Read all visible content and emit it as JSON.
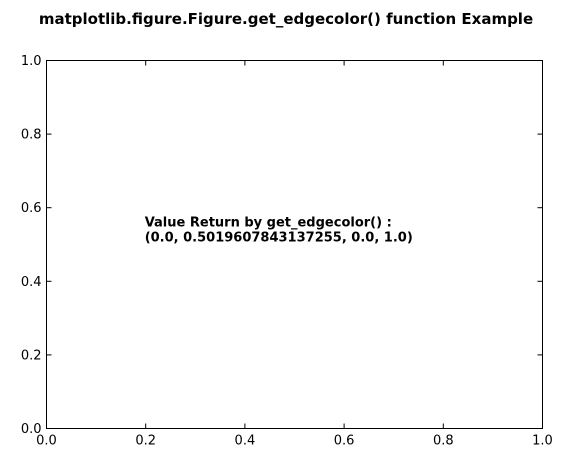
{
  "chart_data": {
    "type": "scatter",
    "title": "matplotlib.figure.Figure.get_edgecolor() function Example",
    "xlabel": "",
    "ylabel": "",
    "xlim": [
      0.0,
      1.0
    ],
    "ylim": [
      0.0,
      1.0
    ],
    "xticks": [
      "0.0",
      "0.2",
      "0.4",
      "0.6",
      "0.8",
      "1.0"
    ],
    "yticks": [
      "0.0",
      "0.2",
      "0.4",
      "0.6",
      "0.8",
      "1.0"
    ],
    "grid": false,
    "series": [],
    "annotation": {
      "x": 0.2,
      "y": 0.5,
      "lines": [
        "Value Return by get_edgecolor() :",
        "(0.0, 0.5019607843137255, 0.0, 1.0)"
      ]
    }
  }
}
